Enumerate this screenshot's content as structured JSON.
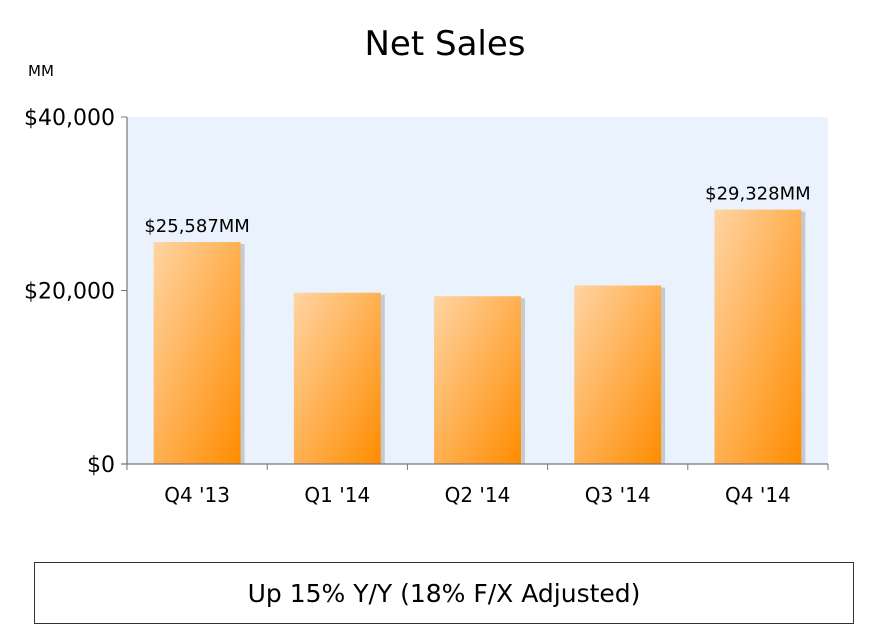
{
  "chart_data": {
    "type": "bar",
    "title": "Net Sales",
    "unit_label": "MM",
    "categories": [
      "Q4 '13",
      "Q1 '14",
      "Q2 '14",
      "Q3 '14",
      "Q4 '14"
    ],
    "values": [
      25587,
      19741,
      19340,
      20579,
      29328
    ],
    "data_labels": [
      "$25,587MM",
      "",
      "",
      "",
      "$29,328MM"
    ],
    "ylim": [
      0,
      40000
    ],
    "yticks": [
      {
        "value": 0,
        "label": "$0"
      },
      {
        "value": 20000,
        "label": "$20,000"
      },
      {
        "value": 40000,
        "label": "$40,000"
      }
    ],
    "plot_background": "#eaf2fd",
    "bar_color_light": "#ffd4a3",
    "bar_color_dark": "#ff8c00",
    "grid": false
  },
  "footer": {
    "text": "Up 15% Y/Y (18% F/X Adjusted)"
  }
}
